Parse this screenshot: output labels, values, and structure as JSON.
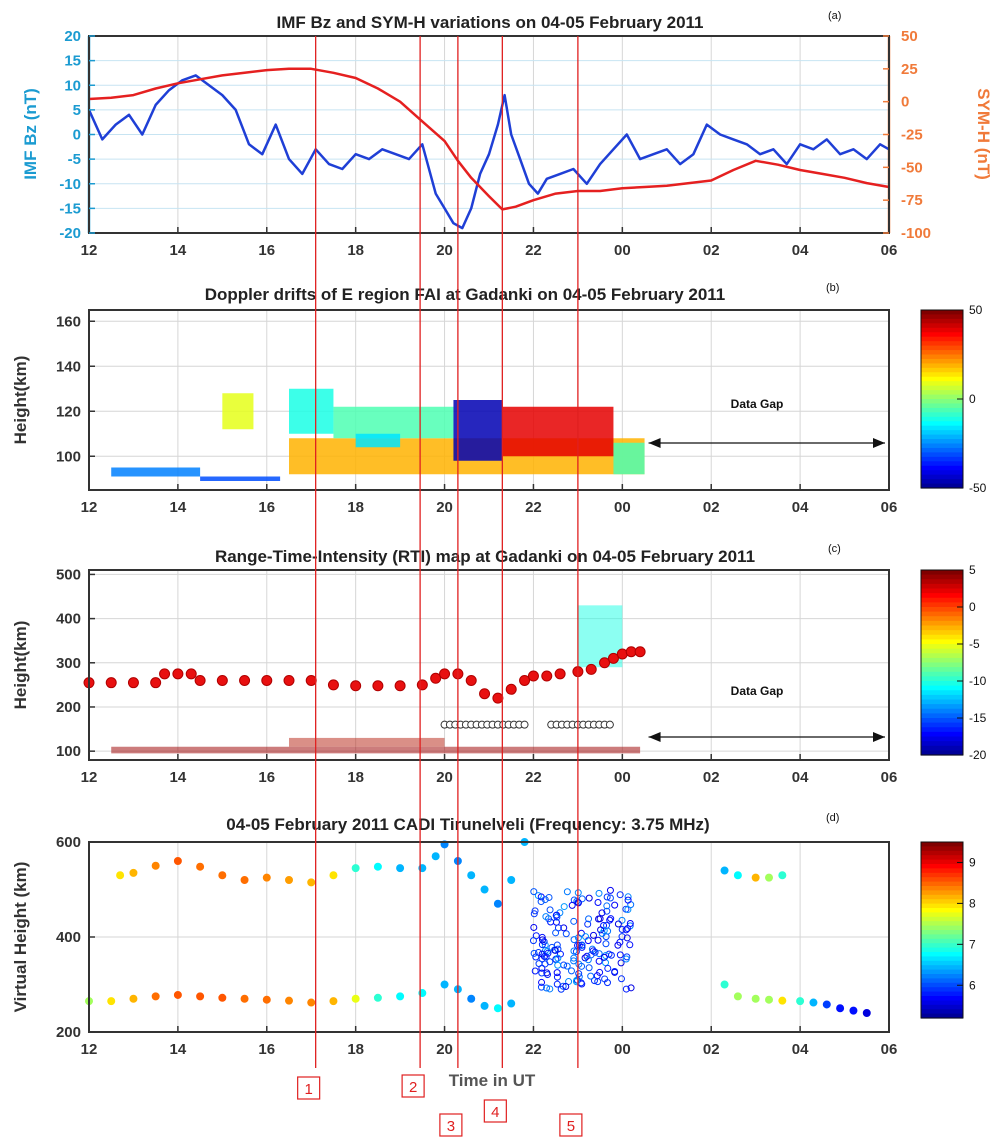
{
  "x_ticks": [
    "12",
    "14",
    "16",
    "18",
    "20",
    "22",
    "00",
    "02",
    "04",
    "06"
  ],
  "xlabel": "Time in UT",
  "data_gap_label": "Data Gap",
  "colors": {
    "bz": "#1f3fd6",
    "symh": "#e52020",
    "event_line": "#e02020",
    "bz_axis": "#1b9bd1",
    "symh_axis": "#f07a3a"
  },
  "events": [
    {
      "label": "1",
      "hour": 17.1
    },
    {
      "label": "2",
      "hour": 19.45
    },
    {
      "label": "3",
      "hour": 20.3
    },
    {
      "label": "4",
      "hour": 21.3
    },
    {
      "label": "5",
      "hour": 23.0
    }
  ],
  "chart_data": [
    {
      "panel": "(a)",
      "type": "line",
      "title": "IMF Bz and SYM-H variations on 04-05 February 2011",
      "ylabel": "IMF Bz (nT)",
      "y2label": "SYM-H (nT)",
      "xlim": [
        12,
        30
      ],
      "ylim": [
        -20,
        20
      ],
      "y2lim": [
        -100,
        50
      ],
      "y_ticks": [
        "-20",
        "-15",
        "-10",
        "-5",
        "0",
        "5",
        "10",
        "15",
        "20"
      ],
      "y2_ticks": [
        "-100",
        "-75",
        "-50",
        "-25",
        "0",
        "25",
        "50"
      ],
      "grid": true,
      "series": [
        {
          "name": "IMF Bz",
          "axis": "left",
          "x": [
            12,
            12.3,
            12.6,
            12.9,
            13.2,
            13.5,
            13.8,
            14.1,
            14.4,
            14.7,
            15,
            15.3,
            15.6,
            15.9,
            16.2,
            16.5,
            16.8,
            17.1,
            17.4,
            17.7,
            18,
            18.3,
            18.6,
            18.9,
            19.2,
            19.5,
            19.8,
            20,
            20.2,
            20.4,
            20.6,
            20.8,
            21,
            21.2,
            21.35,
            21.5,
            21.7,
            21.9,
            22.1,
            22.3,
            22.6,
            22.9,
            23.2,
            23.5,
            23.8,
            24.1,
            24.4,
            24.7,
            25,
            25.3,
            25.6,
            25.9,
            26.2,
            26.5,
            26.8,
            27.1,
            27.4,
            27.7,
            28,
            28.3,
            28.6,
            28.9,
            29.2,
            29.5,
            29.8,
            30
          ],
          "y": [
            5,
            -1,
            2,
            4,
            0,
            6,
            9,
            11,
            12,
            10,
            8,
            5,
            -2,
            -4,
            2,
            -5,
            -8,
            -3,
            -6,
            -7,
            -4,
            -5,
            -3,
            -4,
            -5,
            -2,
            -12,
            -15,
            -18,
            -19,
            -15,
            -8,
            -4,
            2,
            8,
            0,
            -5,
            -10,
            -12,
            -9,
            -8,
            -7,
            -10,
            -6,
            -3,
            0,
            -5,
            -4,
            -3,
            -6,
            -4,
            2,
            0,
            -1,
            -2,
            -4,
            -3,
            -6,
            -2,
            -3,
            -1,
            -4,
            -3,
            -5,
            -2,
            -3
          ]
        },
        {
          "name": "SYM-H",
          "axis": "right",
          "x": [
            12,
            12.5,
            13,
            13.5,
            14,
            14.5,
            15,
            15.5,
            16,
            16.5,
            17,
            17.5,
            18,
            18.5,
            19,
            19.5,
            20,
            20.3,
            20.6,
            21,
            21.3,
            21.6,
            22,
            22.5,
            23,
            23.5,
            24,
            24.5,
            25,
            25.5,
            26,
            26.5,
            27,
            27.5,
            28,
            28.5,
            29,
            29.5,
            30
          ],
          "y": [
            2,
            3,
            5,
            10,
            14,
            17,
            20,
            22,
            24,
            25,
            25,
            22,
            18,
            10,
            0,
            -15,
            -30,
            -45,
            -58,
            -72,
            -82,
            -80,
            -75,
            -70,
            -68,
            -68,
            -66,
            -65,
            -64,
            -62,
            -60,
            -52,
            -45,
            -48,
            -52,
            -55,
            -58,
            -62,
            -65
          ]
        }
      ]
    },
    {
      "panel": "(b)",
      "type": "heatmap",
      "title": "Doppler drifts of E region FAI at Gadanki on 04-05 February 2011",
      "ylabel": "Height(km)",
      "xlim": [
        12,
        30
      ],
      "ylim": [
        85,
        165
      ],
      "y_ticks": [
        "100",
        "120",
        "140",
        "160"
      ],
      "colorbar": {
        "min": -50,
        "max": 50,
        "ticks": [
          "50",
          "0",
          "-50"
        ]
      },
      "data_gap": [
        24.5,
        30
      ],
      "patches": [
        {
          "x0": 12.5,
          "x1": 14.5,
          "y0": 91,
          "y1": 95,
          "v": -25
        },
        {
          "x0": 14.5,
          "x1": 16.3,
          "y0": 89,
          "y1": 91,
          "v": -30
        },
        {
          "x0": 15.0,
          "x1": 15.7,
          "y0": 112,
          "y1": 128,
          "v": 10
        },
        {
          "x0": 16.5,
          "x1": 17.5,
          "y0": 110,
          "y1": 130,
          "v": -10
        },
        {
          "x0": 16.5,
          "x1": 24.5,
          "y0": 92,
          "y1": 108,
          "v": 20
        },
        {
          "x0": 17.5,
          "x1": 20.2,
          "y0": 108,
          "y1": 122,
          "v": -5
        },
        {
          "x0": 18.0,
          "x1": 19.0,
          "y0": 104,
          "y1": 110,
          "v": -15
        },
        {
          "x0": 20.2,
          "x1": 21.3,
          "y0": 98,
          "y1": 125,
          "v": -45
        },
        {
          "x0": 21.3,
          "x1": 23.8,
          "y0": 100,
          "y1": 122,
          "v": 40
        },
        {
          "x0": 23.8,
          "x1": 24.5,
          "y0": 92,
          "y1": 106,
          "v": -5
        }
      ]
    },
    {
      "panel": "(c)",
      "type": "heatmap",
      "title": "Range-Time-Intensity (RTI) map at Gadanki on 04-05 February 2011",
      "ylabel": "Height(km)",
      "xlim": [
        12,
        30
      ],
      "ylim": [
        80,
        510
      ],
      "y_ticks": [
        "100",
        "200",
        "300",
        "400",
        "500"
      ],
      "colorbar": {
        "min": -20,
        "max": 5,
        "ticks": [
          "5",
          "0",
          "-5",
          "-10",
          "-15",
          "-20"
        ]
      },
      "data_gap": [
        24.5,
        30
      ],
      "hmf_x": [
        12,
        12.5,
        13,
        13.5,
        13.7,
        14,
        14.3,
        14.5,
        15,
        15.5,
        16,
        16.5,
        17,
        17.5,
        18,
        18.5,
        19,
        19.5,
        19.8,
        20,
        20.3,
        20.6,
        20.9,
        21.2,
        21.5,
        21.8,
        22,
        22.3,
        22.6,
        23,
        23.3,
        23.6,
        23.8,
        24,
        24.2,
        24.4
      ],
      "hmf_y": [
        255,
        255,
        255,
        255,
        275,
        275,
        275,
        260,
        260,
        260,
        260,
        260,
        260,
        250,
        248,
        248,
        248,
        250,
        265,
        275,
        275,
        260,
        230,
        220,
        240,
        260,
        270,
        270,
        275,
        280,
        285,
        300,
        310,
        320,
        325,
        325
      ],
      "echo_patches": [
        {
          "x0": 23.0,
          "x1": 24.0,
          "y0": 290,
          "y1": 430,
          "v": -10
        }
      ],
      "marker_row_height": 160
    },
    {
      "panel": "(d)",
      "type": "scatter",
      "title": "04-05 February 2011 CADI Tirunelveli (Frequency: 3.75 MHz)",
      "ylabel": "Virtual Height (km)",
      "xlim": [
        12,
        30
      ],
      "ylim": [
        200,
        600
      ],
      "y_ticks": [
        "200",
        "400",
        "600"
      ],
      "colorbar": {
        "min": 5.2,
        "max": 9.5,
        "ticks": [
          "9",
          "8",
          "7",
          "6"
        ]
      },
      "upper_x": [
        12.7,
        13,
        13.5,
        14,
        14.5,
        15,
        15.5,
        16,
        16.5,
        17,
        17.5,
        18,
        18.5,
        19,
        19.5,
        19.8,
        20,
        20.3,
        20.6,
        20.9,
        21.2,
        21.5,
        21.8,
        26.3,
        26.6,
        27,
        27.3,
        27.6
      ],
      "upper_y": [
        530,
        535,
        550,
        560,
        548,
        530,
        520,
        525,
        520,
        515,
        530,
        545,
        548,
        545,
        545,
        570,
        595,
        560,
        530,
        500,
        470,
        520,
        600,
        540,
        530,
        525,
        525,
        530
      ],
      "upper_v": [
        8,
        8.2,
        8.4,
        8.6,
        8.5,
        8.5,
        8.5,
        8.4,
        8.3,
        8.2,
        8,
        7,
        6.8,
        6.5,
        6.5,
        6.5,
        6.3,
        6.3,
        6.5,
        6.5,
        6.3,
        6.5,
        6.5,
        6.5,
        6.8,
        8.2,
        7.5,
        7
      ],
      "lower_x": [
        12,
        12.5,
        13,
        13.5,
        14,
        14.5,
        15,
        15.5,
        16,
        16.5,
        17,
        17.5,
        18,
        18.5,
        19,
        19.5,
        20,
        20.3,
        20.6,
        20.9,
        21.2,
        21.5,
        26.3,
        26.6,
        27,
        27.3,
        27.6,
        28,
        28.3,
        28.6,
        28.9,
        29.2,
        29.5
      ],
      "lower_y": [
        265,
        265,
        270,
        275,
        278,
        275,
        272,
        270,
        268,
        266,
        262,
        265,
        270,
        272,
        275,
        282,
        300,
        290,
        270,
        255,
        250,
        260,
        300,
        275,
        270,
        268,
        266,
        265,
        262,
        258,
        250,
        245,
        240
      ],
      "lower_v": [
        7.5,
        8,
        8.2,
        8.5,
        8.6,
        8.6,
        8.6,
        8.5,
        8.5,
        8.4,
        8.4,
        8.2,
        7.8,
        7,
        6.8,
        6.8,
        6.5,
        6.5,
        6.3,
        6.5,
        6.8,
        6.5,
        7,
        7.5,
        7.5,
        7.5,
        8,
        7,
        6.5,
        6,
        5.8,
        5.8,
        5.6
      ],
      "cluster_region": {
        "x0": 22.0,
        "x1": 24.2,
        "y0": 290,
        "y1": 500,
        "v": 6.2
      }
    }
  ]
}
